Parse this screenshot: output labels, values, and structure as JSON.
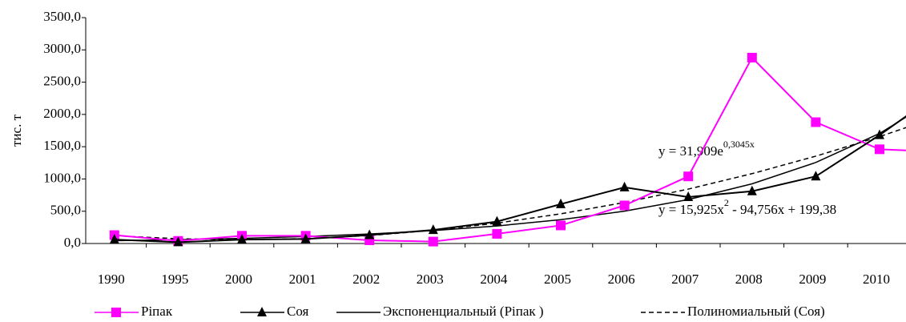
{
  "chart_data": {
    "type": "line",
    "ylabel": "тис. т",
    "categories": [
      "1990",
      "1995",
      "2000",
      "2001",
      "2002",
      "2003",
      "2004",
      "2005",
      "2006",
      "2007",
      "2008",
      "2009",
      "2010",
      null
    ],
    "series": [
      {
        "name": "Ріпак",
        "color": "#ff00ff",
        "marker": "square",
        "dash": false,
        "values": [
          130,
          40,
          120,
          120,
          50,
          30,
          150,
          280,
          590,
          1040,
          2880,
          1880,
          1460,
          1420
        ]
      },
      {
        "name": "Соя",
        "color": "#000000",
        "marker": "triangle",
        "dash": false,
        "values": [
          60,
          20,
          60,
          70,
          130,
          210,
          340,
          610,
          870,
          720,
          810,
          1040,
          1680,
          2380
        ]
      },
      {
        "name": "Экспоненциальный (Ріпак )",
        "color": "#000000",
        "marker": "none",
        "dash": false,
        "values": [
          43.3,
          58.8,
          79.9,
          108.5,
          147.3,
          200.1,
          271.7,
          369.0,
          501.1,
          680.6,
          924.4,
          1255.6,
          1705.3,
          2316.1
        ]
      },
      {
        "name": "Полиномиальный (Соя)",
        "color": "#000000",
        "marker": "none",
        "dash": true,
        "values": [
          120.5,
          73.6,
          58.5,
          75.2,
          123.7,
          204.0,
          316.1,
          459.9,
          635.6,
          843.1,
          1082.4,
          1353.5,
          1656.5,
          1991.2
        ]
      }
    ],
    "annotations": [
      {
        "text": "y = 31,909e",
        "exponent": "0,3045x"
      },
      {
        "text": "y = 15,925x",
        "exponent": "2",
        "rest": " - 94,756x + 199,38"
      }
    ],
    "ylim": [
      0,
      3500
    ],
    "yticks": [
      {
        "value": 0,
        "label": "0,0"
      },
      {
        "value": 500,
        "label": "500,0"
      },
      {
        "value": 1000,
        "label": "1000,0"
      },
      {
        "value": 1500,
        "label": "1500,0"
      },
      {
        "value": 2000,
        "label": "2000,0"
      },
      {
        "value": 2500,
        "label": "2500,0"
      },
      {
        "value": 3000,
        "label": "3000,0"
      },
      {
        "value": 3500,
        "label": "3500,0"
      }
    ],
    "grid": false
  }
}
